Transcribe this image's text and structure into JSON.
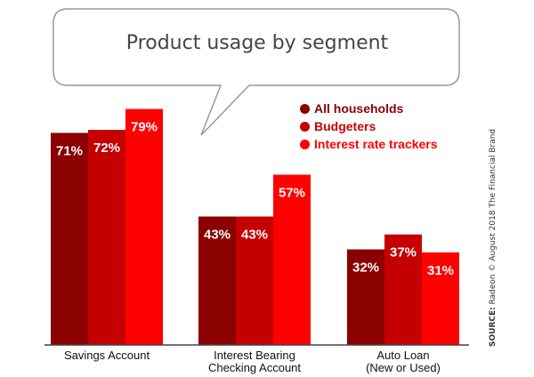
{
  "title": "Product usage by segment",
  "source": {
    "prefix": "SOURCE:",
    "text": " Radeon © August 2018 The Financial Brand"
  },
  "colors": {
    "All households": "#8b0000",
    "Budgeters": "#c50000",
    "Interest rate trackers": "#ff0000",
    "bubble_border": "#999999",
    "axis": "#444444"
  },
  "chart_data": {
    "type": "bar",
    "title": "Product usage by segment",
    "categories": [
      [
        "Savings Account"
      ],
      [
        "Interest Bearing",
        "Checking Account"
      ],
      [
        "Auto Loan",
        "(New or Used)"
      ]
    ],
    "series": [
      {
        "name": "All households",
        "values": [
          71,
          43,
          32
        ]
      },
      {
        "name": "Budgeters",
        "values": [
          72,
          43,
          37
        ]
      },
      {
        "name": "Interest rate trackers",
        "values": [
          79,
          57,
          31
        ]
      }
    ],
    "unit": "%",
    "ylim": [
      0,
      100
    ],
    "grid": false,
    "legend": "top-right",
    "xlabel": "",
    "ylabel": ""
  }
}
